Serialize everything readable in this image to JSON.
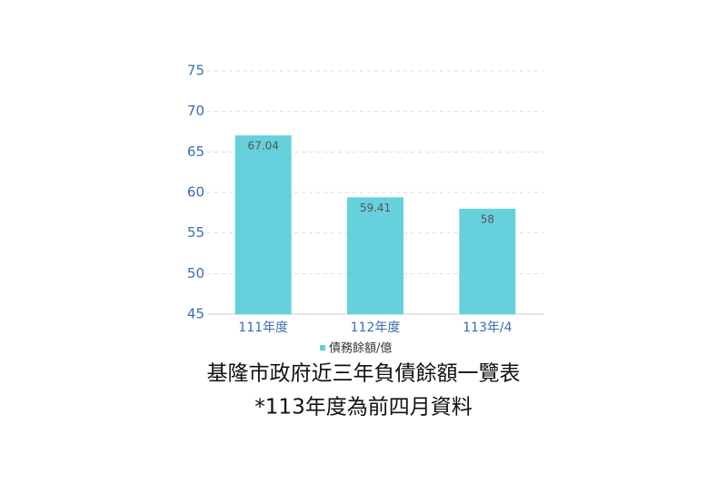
{
  "chart_data": {
    "type": "bar",
    "title": "基隆市政府近三年負債餘額一覽表",
    "subtitle": "*113年度為前四月資料",
    "categories": [
      "111年度",
      "112年度",
      "113年/4"
    ],
    "series": [
      {
        "name": "債務餘額/億",
        "color": "#66d1dc",
        "values": [
          67.04,
          59.41,
          58
        ]
      }
    ],
    "ylim": [
      45,
      75
    ],
    "yticks": [
      45,
      50,
      55,
      60,
      65,
      70,
      75
    ],
    "grid": true
  }
}
